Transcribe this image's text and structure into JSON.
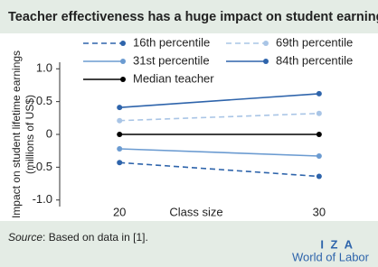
{
  "chart_data": {
    "type": "line",
    "title": "Teacher effectiveness has a huge impact on student earnings",
    "x": [
      20,
      30
    ],
    "xlabel": "Class size",
    "ylabel": [
      "Impact on student lifetime earnings",
      "(millions of US$)"
    ],
    "xlim": [
      17,
      32
    ],
    "xticks": [
      20,
      30
    ],
    "ylim": [
      -1.1,
      1.1
    ],
    "yticks": [
      {
        "value": 1,
        "label": "1.0"
      },
      0.5,
      0,
      -0.5,
      {
        "value": -1,
        "label": "-1.0"
      }
    ],
    "series": [
      {
        "name": "16th percentile",
        "color": "#2e64ab",
        "dashed": true,
        "values": [
          -0.43,
          -0.64
        ]
      },
      {
        "name": "69th percentile",
        "color": "#a9c5e6",
        "dashed": true,
        "values": [
          0.21,
          0.32
        ]
      },
      {
        "name": "31st percentile",
        "color": "#6b9bd1",
        "dashed": false,
        "values": [
          -0.22,
          -0.33
        ]
      },
      {
        "name": "84th percentile",
        "color": "#2e64ab",
        "dashed": false,
        "values": [
          0.41,
          0.62
        ]
      },
      {
        "name": "Median teacher",
        "color": "#000000",
        "dashed": false,
        "values": [
          0,
          0
        ]
      }
    ],
    "source": {
      "label": "Source",
      "text": ": Based on data in [1]."
    }
  },
  "logo": {
    "name": "I Z A",
    "tagline": "World of Labor"
  }
}
